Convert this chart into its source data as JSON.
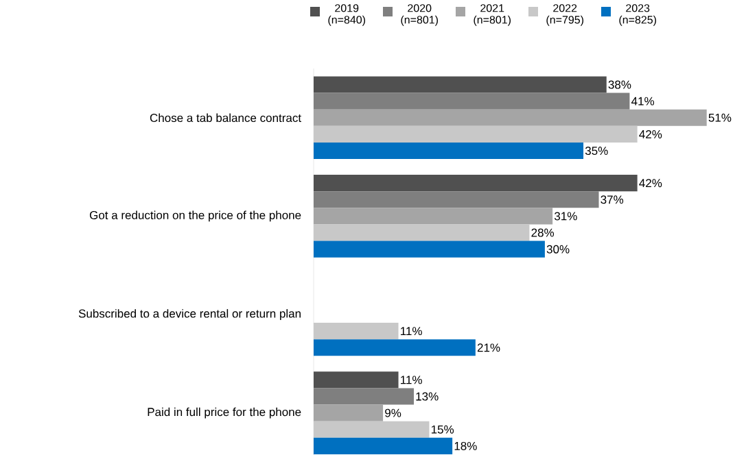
{
  "chart_data": {
    "type": "bar",
    "orientation": "horizontal",
    "legend": "top",
    "categories": [
      "Chose a tab balance contract",
      "Got a reduction on the price of the phone",
      "Subscribed to a device rental or return plan",
      "Paid in full price for the phone"
    ],
    "series": [
      {
        "name": "2019 (n=840)",
        "color": "#505050",
        "values": [
          38,
          42,
          null,
          11
        ],
        "value_labels": [
          "38%",
          "42%",
          null,
          "11%"
        ]
      },
      {
        "name": "2020 (n=801)",
        "color": "#7f7f7f",
        "values": [
          41,
          37,
          null,
          13
        ],
        "value_labels": [
          "41%",
          "37%",
          null,
          "13%"
        ]
      },
      {
        "name": "2021 (n=801)",
        "color": "#a5a5a5",
        "values": [
          51,
          31,
          null,
          9
        ],
        "value_labels": [
          "51%",
          "31%",
          null,
          "9%"
        ]
      },
      {
        "name": "2022 (n=795)",
        "color": "#c8c8c8",
        "values": [
          42,
          28,
          11,
          15
        ],
        "value_labels": [
          "42%",
          "28%",
          "11%",
          "15%"
        ]
      },
      {
        "name": "2023 (n=825)",
        "color": "#0070c0",
        "values": [
          35,
          30,
          21,
          18
        ],
        "value_labels": [
          "35%",
          "30%",
          "21%",
          "18%"
        ]
      }
    ]
  }
}
